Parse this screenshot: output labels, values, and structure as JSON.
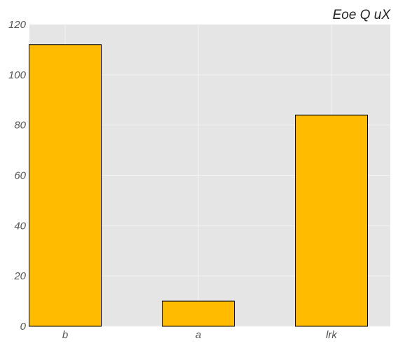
{
  "chart_data": {
    "type": "bar",
    "title": "Eoe Q uX",
    "xlabel": "",
    "ylabel": "",
    "categories": [
      "b",
      "a",
      "lrk"
    ],
    "values": [
      112,
      10,
      84
    ],
    "ylim": [
      0,
      120
    ],
    "yticks": [
      0,
      20,
      40,
      60,
      80,
      100,
      120
    ],
    "grid": true,
    "colors": {
      "bar_fill": "#ffbb00",
      "bar_edge": "#000000",
      "plot_background": "#e5e5e5",
      "grid": "#f2f2f2"
    }
  }
}
